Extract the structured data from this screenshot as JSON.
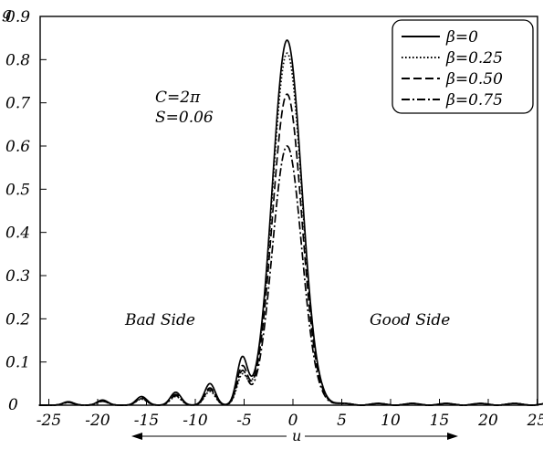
{
  "chart_data": {
    "type": "line",
    "title": "",
    "xlabel": "u",
    "ylabel": "g",
    "xlim": [
      -26,
      26
    ],
    "ylim": [
      0,
      0.9
    ],
    "x_ticks": [
      -25,
      -20,
      -15,
      -10,
      -5,
      0,
      5,
      10,
      15,
      20,
      25
    ],
    "y_ticks": [
      0.1,
      0.2,
      0.3,
      0.4,
      0.5,
      0.6,
      0.7,
      0.8,
      0.9
    ],
    "grid": false,
    "legend_position": "top-right",
    "annotations": [
      "C=2π",
      "S=0.06",
      "Bad Side",
      "Good Side"
    ],
    "series": [
      {
        "name": "β=0",
        "style": "solid",
        "peak": 0.845,
        "side_lobes": [
          [
            -5.2,
            0.105
          ],
          [
            -8.5,
            0.05
          ],
          [
            -12.0,
            0.03
          ],
          [
            -15.5,
            0.02
          ],
          [
            -19.5,
            0.012
          ],
          [
            -23.0,
            0.008
          ]
        ]
      },
      {
        "name": "β=0.25",
        "style": "dotted",
        "peak": 0.815,
        "side_lobes": [
          [
            -5.2,
            0.065
          ],
          [
            -8.5,
            0.032
          ],
          [
            -12.0,
            0.02
          ],
          [
            -15.5,
            0.014
          ],
          [
            -19.5,
            0.009
          ],
          [
            -23.0,
            0.006
          ]
        ]
      },
      {
        "name": "β=0.50",
        "style": "dashed",
        "peak": 0.72,
        "side_lobes": [
          [
            -5.2,
            0.085
          ],
          [
            -8.5,
            0.04
          ],
          [
            -12.0,
            0.025
          ],
          [
            -15.5,
            0.017
          ],
          [
            -19.5,
            0.01
          ],
          [
            -23.0,
            0.007
          ]
        ]
      },
      {
        "name": "β=0.75",
        "style": "dashdot",
        "peak": 0.6,
        "side_lobes": [
          [
            -5.2,
            0.075
          ],
          [
            -8.5,
            0.036
          ],
          [
            -12.0,
            0.022
          ],
          [
            -15.5,
            0.015
          ],
          [
            -19.5,
            0.009
          ],
          [
            -23.0,
            0.006
          ]
        ]
      }
    ]
  }
}
